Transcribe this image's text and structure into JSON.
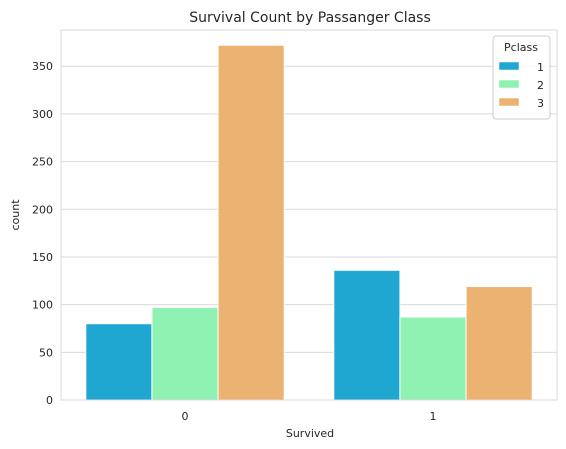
{
  "chart_data": {
    "type": "bar",
    "title": "Survival Count by Passanger Class",
    "xlabel": "Survived",
    "ylabel": "count",
    "categories": [
      "0",
      "1"
    ],
    "series": [
      {
        "name": "1",
        "values": [
          80,
          136
        ],
        "color": "#1fa7d2"
      },
      {
        "name": "2",
        "values": [
          97,
          87
        ],
        "color": "#8ff1b2"
      },
      {
        "name": "3",
        "values": [
          372,
          119
        ],
        "color": "#ecb271"
      }
    ],
    "ylim": [
      0,
      388
    ],
    "yticks": [
      0,
      50,
      100,
      150,
      200,
      250,
      300,
      350
    ],
    "grid": "horizontal",
    "legend": {
      "title": "Pclass",
      "placement": "upper right"
    },
    "colors": {
      "grid": "#d9d9d9",
      "axes_edge": "#d9d9d9",
      "text": "#262626"
    }
  }
}
